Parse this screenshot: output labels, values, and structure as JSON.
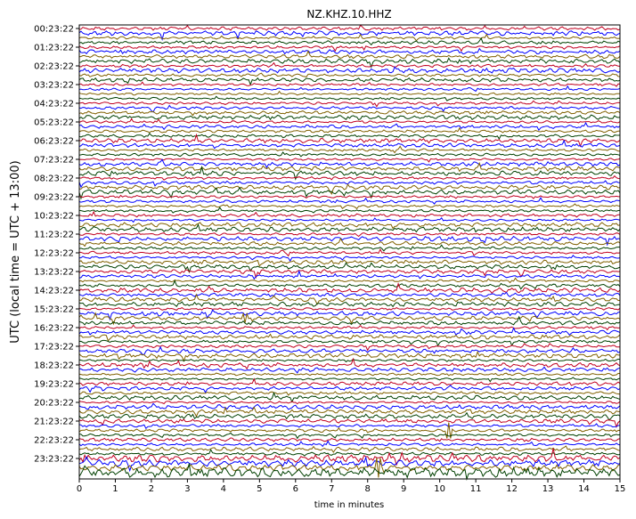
{
  "chart_data": {
    "type": "line",
    "subtype": "helicorder (dayplot seismogram)",
    "title": "NZ.KHZ.10.HHZ",
    "xlabel": "time in minutes",
    "ylabel": "UTC (local time = UTC + 13:00)",
    "xlim": [
      0,
      15
    ],
    "x_ticks": [
      "0",
      "1",
      "2",
      "3",
      "4",
      "5",
      "6",
      "7",
      "8",
      "9",
      "10",
      "11",
      "12",
      "13",
      "14",
      "15"
    ],
    "y_tick_labels": [
      "00:23:22",
      "01:23:22",
      "02:23:22",
      "03:23:22",
      "04:23:22",
      "05:23:22",
      "06:23:22",
      "07:23:22",
      "08:23:22",
      "09:23:22",
      "10:23:22",
      "11:23:22",
      "12:23:22",
      "13:23:22",
      "14:23:22",
      "15:23:22",
      "16:23:22",
      "17:23:22",
      "18:23:22",
      "19:23:22",
      "20:23:22",
      "21:23:22",
      "22:23:22",
      "23:23:22"
    ],
    "traces_per_hour": 4,
    "trace_count": 96,
    "trace_minutes": 15,
    "trace_colors": [
      "#c00020",
      "#0000ff",
      "#806000",
      "#004000"
    ],
    "grid": false,
    "legend": "none",
    "events": [
      {
        "minute": 4.6,
        "hour_label": "15:23:22",
        "description": "small spike"
      },
      {
        "minute": 10.25,
        "hour_label": "21:23:22",
        "description": "large spike"
      },
      {
        "minute": 8.3,
        "hour_label": "23:23:22",
        "description": "high-amplitude burst"
      }
    ]
  }
}
